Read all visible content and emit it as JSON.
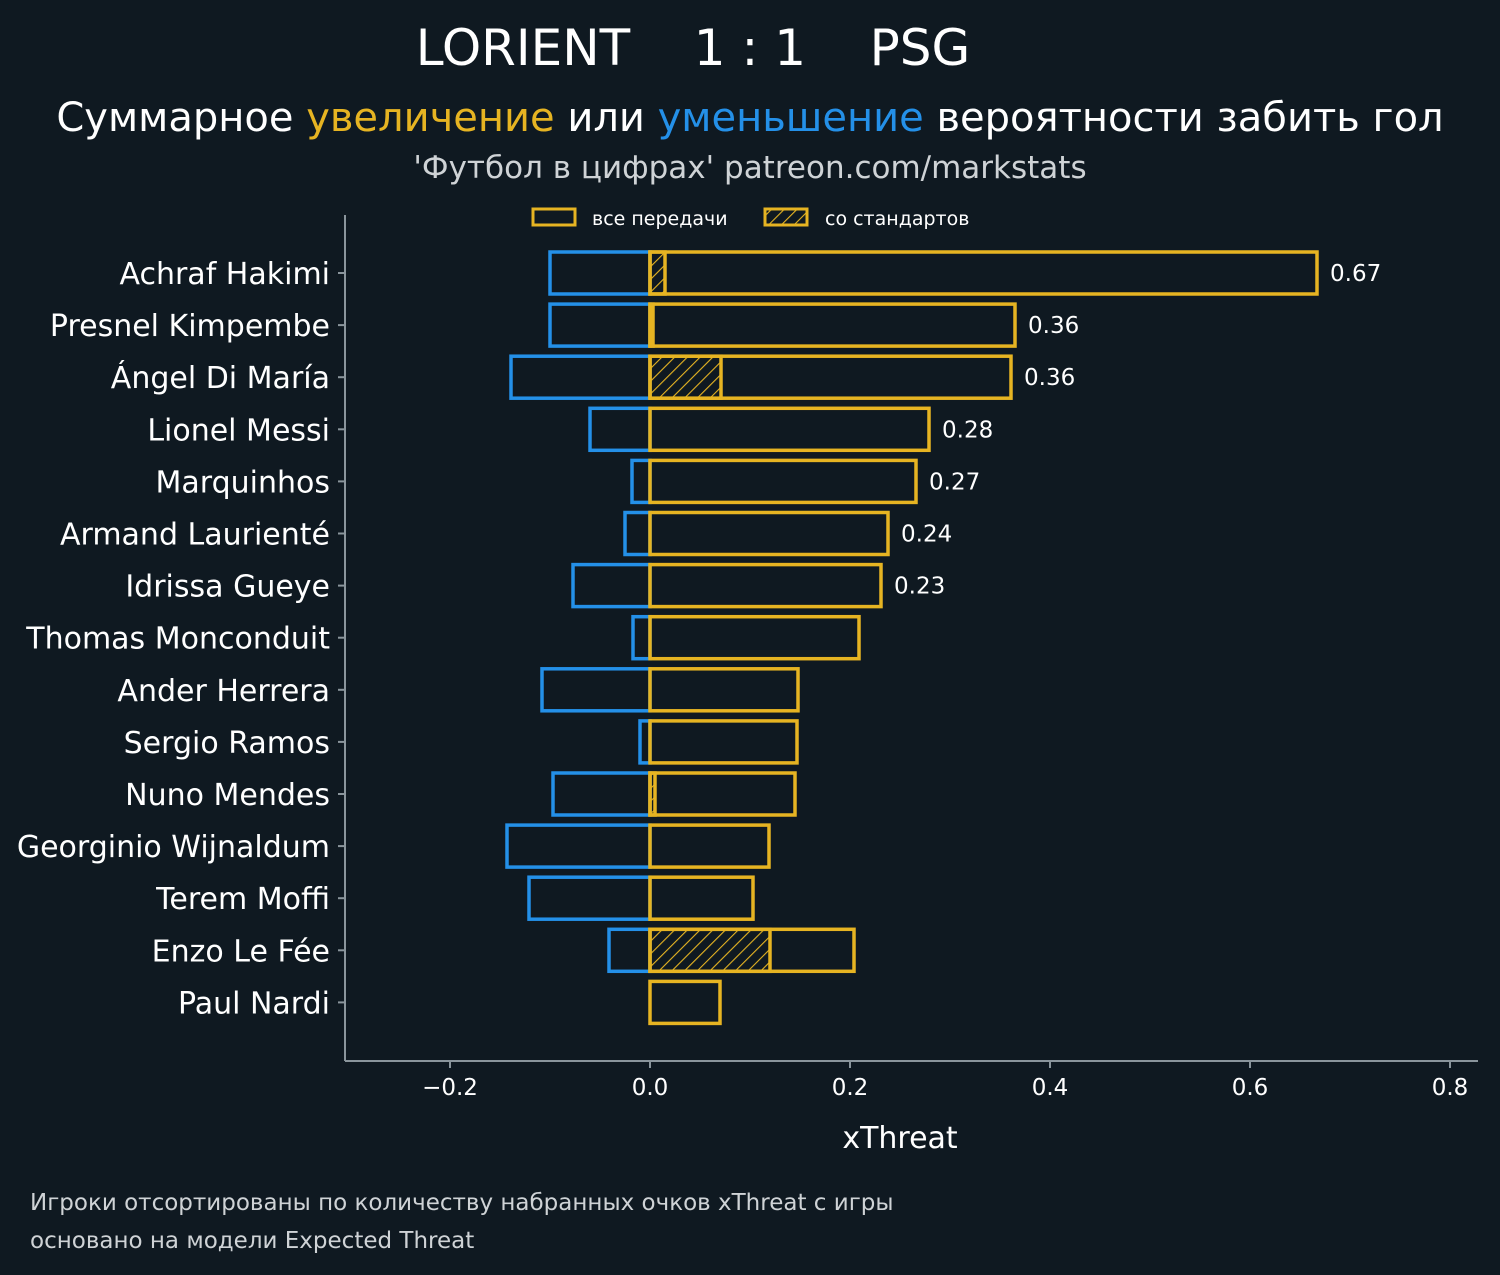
{
  "header": {
    "match_title": "LORIENT    1 : 1    PSG",
    "subtitle_part1": "Суммарное ",
    "subtitle_increase": "увеличение",
    "subtitle_part2": " или ",
    "subtitle_decrease": "уменьшение",
    "subtitle_part3": " вероятности забить гол",
    "credit": "'Футбол в цифрах' patreon.com/markstats"
  },
  "legend": {
    "all_passes": "все передачи",
    "set_pieces": "со стандартов"
  },
  "footer": {
    "line1": "Игроки отсортированы по количеству набранных очков xThreat с игры",
    "line2": "основано на модели Expected Threat"
  },
  "colors": {
    "background": "#0f1921",
    "increase": "#e6b422",
    "decrease": "#2490e8",
    "axis": "#8a959c"
  },
  "chart_data": {
    "type": "bar",
    "orientation": "horizontal",
    "xlabel": "xThreat",
    "xlim": [
      -0.3,
      0.8
    ],
    "xticks": [
      -0.2,
      0.0,
      0.2,
      0.4,
      0.6,
      0.8
    ],
    "xtick_labels": [
      "−0.2",
      "0.0",
      "0.2",
      "0.4",
      "0.6",
      "0.8"
    ],
    "legend_position": "top-center",
    "grid": false,
    "categories": [
      "Achraf Hakimi",
      "Presnel Kimpembe",
      "Ángel Di María",
      "Lionel Messi",
      "Marquinhos",
      "Armand Laurienté",
      "Idrissa Gueye",
      "Thomas Monconduit",
      "Ander Herrera",
      "Sergio Ramos",
      "Nuno Mendes",
      "Georginio Wijnaldum",
      "Terem Moffi",
      "Enzo Le Fée",
      "Paul Nardi"
    ],
    "series": [
      {
        "name": "все передачи",
        "values": [
          0.667,
          0.365,
          0.361,
          0.279,
          0.266,
          0.238,
          0.231,
          0.209,
          0.148,
          0.147,
          0.145,
          0.119,
          0.103,
          0.204,
          0.07
        ]
      },
      {
        "name": "со стандартов",
        "values": [
          0.015,
          0.003,
          0.071,
          0.0,
          0.0,
          0.0,
          0.0,
          0.0,
          0.0,
          0.0,
          0.005,
          0.0,
          0.0,
          0.12,
          0.0
        ]
      },
      {
        "values": [
          -0.1,
          -0.1,
          -0.139,
          -0.06,
          -0.018,
          -0.025,
          -0.077,
          -0.017,
          -0.108,
          -0.01,
          -0.097,
          -0.143,
          -0.121,
          -0.041,
          0.0
        ]
      }
    ],
    "value_labels": [
      "0.67",
      "0.36",
      "0.36",
      "0.28",
      "0.27",
      "0.24",
      "0.23",
      "",
      "",
      "",
      "",
      "",
      "",
      "",
      ""
    ]
  }
}
